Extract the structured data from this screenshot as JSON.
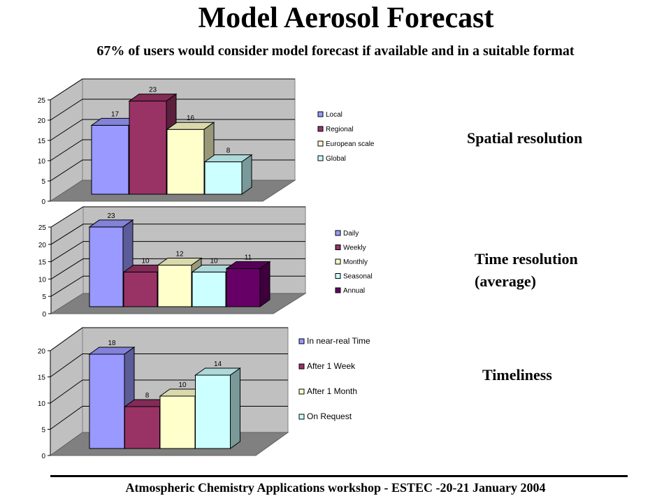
{
  "title": "Model Aerosol Forecast",
  "subtitle": "67% of users would consider model forecast if available and in a suitable format",
  "footer": "Atmospheric Chemistry Applications workshop - ESTEC -20-21 January 2004",
  "colors": {
    "wall": "#c0c0c0",
    "floor": "#808080",
    "grid": "#000000"
  },
  "chart_data": [
    {
      "type": "bar",
      "side_label": "Spatial resolution",
      "categories": [
        "Local",
        "Regional",
        "European scale",
        "Global"
      ],
      "values": [
        17,
        23,
        16,
        8
      ],
      "colors": [
        "#9999ff",
        "#993366",
        "#ffffcc",
        "#ccffff"
      ],
      "yticks": [
        "0",
        "5",
        "10",
        "15",
        "20",
        "25"
      ],
      "ylim": [
        0,
        25
      ],
      "legend": "right",
      "grid": true
    },
    {
      "type": "bar",
      "side_label": "Time resolution (average)",
      "side_label_lines": [
        "Time resolution",
        "(average)"
      ],
      "categories": [
        "Daily",
        "Weekly",
        "Monthly",
        "Seasonal",
        "Annual"
      ],
      "values": [
        23,
        10,
        12,
        10,
        11
      ],
      "colors": [
        "#9999ff",
        "#993366",
        "#ffffcc",
        "#ccffff",
        "#660066"
      ],
      "yticks": [
        "0",
        "5",
        "10",
        "15",
        "20",
        "25"
      ],
      "ylim": [
        0,
        25
      ],
      "legend": "right",
      "grid": true
    },
    {
      "type": "bar",
      "side_label": "Timeliness",
      "categories": [
        "In near-real Time",
        "After 1 Week",
        "After 1 Month",
        "On Request"
      ],
      "values": [
        18,
        8,
        10,
        14
      ],
      "colors": [
        "#9999ff",
        "#993366",
        "#ffffcc",
        "#ccffff"
      ],
      "yticks": [
        "0",
        "5",
        "10",
        "15",
        "20"
      ],
      "ylim": [
        0,
        20
      ],
      "legend": "right",
      "grid": true
    }
  ]
}
